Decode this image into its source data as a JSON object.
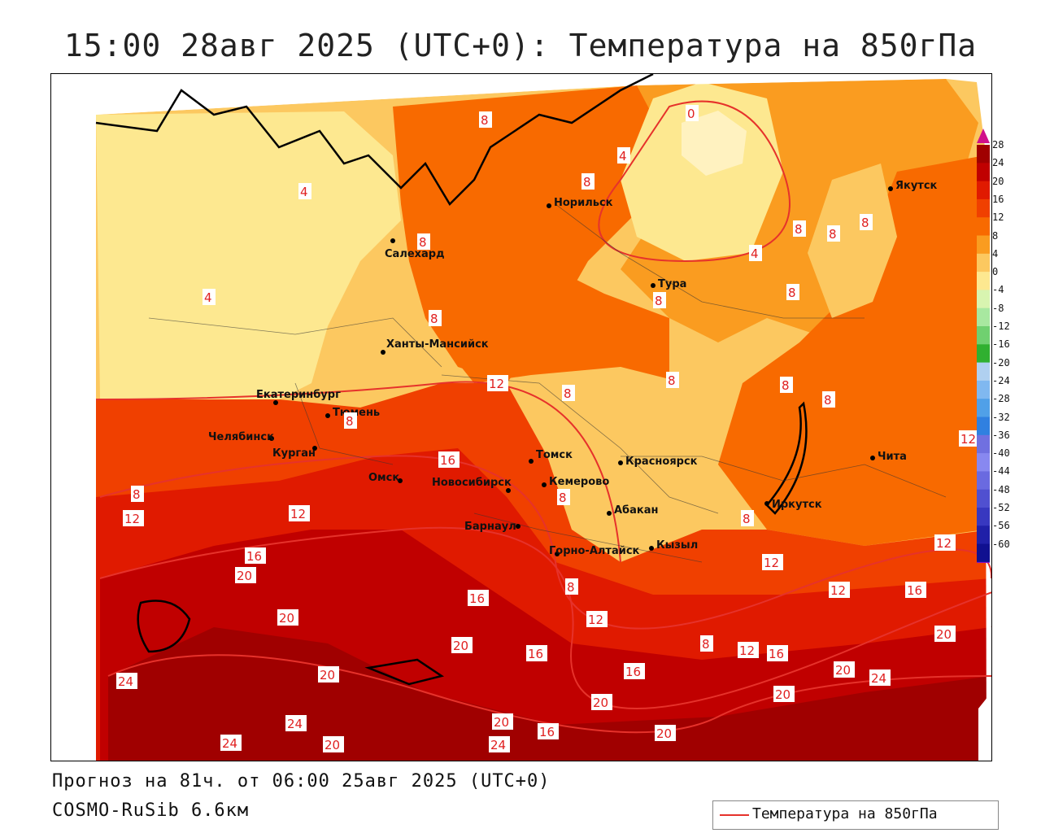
{
  "title": "15:00 28авг 2025 (UTC+0): Температура на 850гПа",
  "footer": {
    "forecast": "Прогноз на 81ч. от 06:00 25авг 2025 (UTC+0)",
    "model": "COSMO-RuSib 6.6км"
  },
  "legend": {
    "series_label": "Температура на 850гПа",
    "line_color": "#e6322b"
  },
  "colorbar": {
    "levels": [
      "28",
      "24",
      "20",
      "16",
      "12",
      "8",
      "4",
      "0",
      "-4",
      "-8",
      "-12",
      "-16",
      "-20",
      "-24",
      "-28",
      "-32",
      "-36",
      "-40",
      "-44",
      "-48",
      "-52",
      "-56",
      "-60"
    ],
    "colors": [
      "#a00000",
      "#c00000",
      "#e01a00",
      "#f04000",
      "#f86a00",
      "#fa9c20",
      "#fcc860",
      "#fde890",
      "#d8f4b0",
      "#a8e8a0",
      "#70d070",
      "#30b030",
      "#b0d0f0",
      "#80b8f0",
      "#50a0e8",
      "#3080e0",
      "#7070e0",
      "#8888f0",
      "#6a6ae0",
      "#5050d0",
      "#3838c0",
      "#2020a8",
      "#101090"
    ]
  },
  "cities": [
    {
      "name": "Норильск"
    },
    {
      "name": "Якутск"
    },
    {
      "name": "Салехард"
    },
    {
      "name": "Тура"
    },
    {
      "name": "Ханты-Мансийск"
    },
    {
      "name": "Екатеринбург"
    },
    {
      "name": "Тюмень"
    },
    {
      "name": "Челябинск"
    },
    {
      "name": "Курган"
    },
    {
      "name": "Омск"
    },
    {
      "name": "Новосибирск"
    },
    {
      "name": "Томск"
    },
    {
      "name": "Кемерово"
    },
    {
      "name": "Красноярск"
    },
    {
      "name": "Барнаул"
    },
    {
      "name": "Абакан"
    },
    {
      "name": "Горно-Алтайск"
    },
    {
      "name": "Кызыл"
    },
    {
      "name": "Иркутск"
    },
    {
      "name": "Чита"
    }
  ],
  "isotherm_labels": [
    "0",
    "4",
    "8",
    "12",
    "16",
    "20",
    "24"
  ]
}
